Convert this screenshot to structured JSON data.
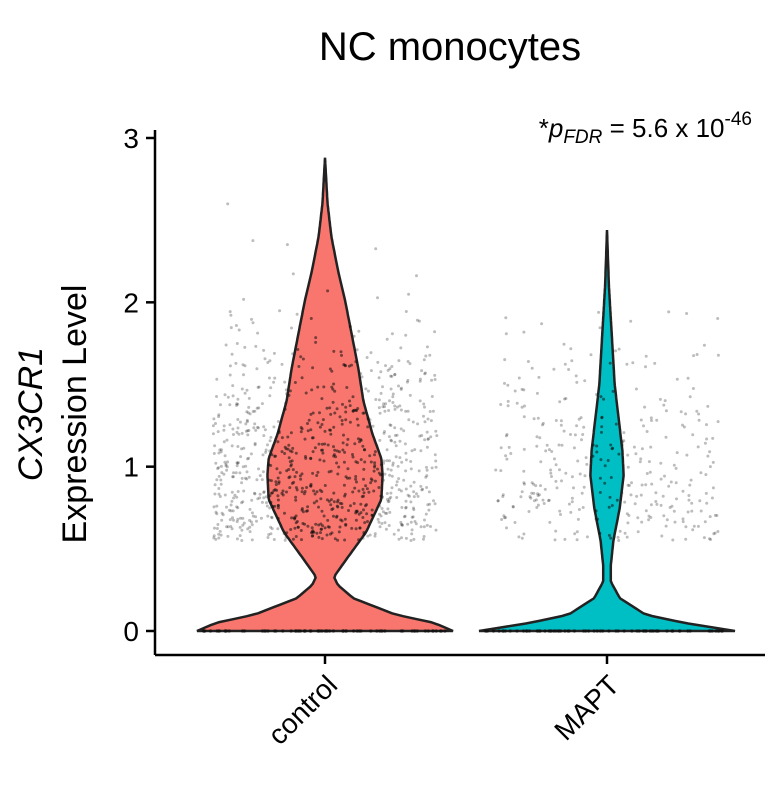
{
  "chart_data": {
    "type": "violin",
    "title": "NC monocytes",
    "ylabel_gene": "CX3CR1",
    "ylabel_rest": "Expression Level",
    "xlabel": "",
    "categories": [
      "control",
      "MAPT"
    ],
    "yticks": [
      0,
      1,
      2,
      3
    ],
    "ylim": [
      -0.1,
      3.0
    ],
    "annotation": {
      "prefix": "*",
      "symbol": "p",
      "subscript": "FDR",
      "text": " = 5.6 x 10",
      "exponent": "-46"
    },
    "series": [
      {
        "category": "control",
        "color": "#F8766D",
        "max": 2.88,
        "n_points": 900,
        "zero_fraction": 0.35,
        "density": [
          [
            0.0,
            1.0
          ],
          [
            0.05,
            0.85
          ],
          [
            0.1,
            0.55
          ],
          [
            0.2,
            0.22
          ],
          [
            0.28,
            0.1
          ],
          [
            0.33,
            0.07
          ],
          [
            0.45,
            0.18
          ],
          [
            0.6,
            0.32
          ],
          [
            0.8,
            0.44
          ],
          [
            0.95,
            0.45
          ],
          [
            1.05,
            0.44
          ],
          [
            1.2,
            0.37
          ],
          [
            1.4,
            0.3
          ],
          [
            1.6,
            0.26
          ],
          [
            1.8,
            0.21
          ],
          [
            2.0,
            0.16
          ],
          [
            2.2,
            0.1
          ],
          [
            2.4,
            0.05
          ],
          [
            2.6,
            0.02
          ],
          [
            2.88,
            0.0
          ]
        ]
      },
      {
        "category": "MAPT",
        "color": "#00BFC4",
        "max": 2.44,
        "n_points": 340,
        "zero_fraction": 0.6,
        "density": [
          [
            0.0,
            1.0
          ],
          [
            0.05,
            0.6
          ],
          [
            0.1,
            0.3
          ],
          [
            0.2,
            0.1
          ],
          [
            0.3,
            0.03
          ],
          [
            0.4,
            0.03
          ],
          [
            0.55,
            0.05
          ],
          [
            0.75,
            0.1
          ],
          [
            0.95,
            0.13
          ],
          [
            1.1,
            0.12
          ],
          [
            1.3,
            0.09
          ],
          [
            1.5,
            0.06
          ],
          [
            1.7,
            0.045
          ],
          [
            1.9,
            0.03
          ],
          [
            2.1,
            0.015
          ],
          [
            2.3,
            0.006
          ],
          [
            2.44,
            0.0
          ]
        ]
      }
    ]
  }
}
